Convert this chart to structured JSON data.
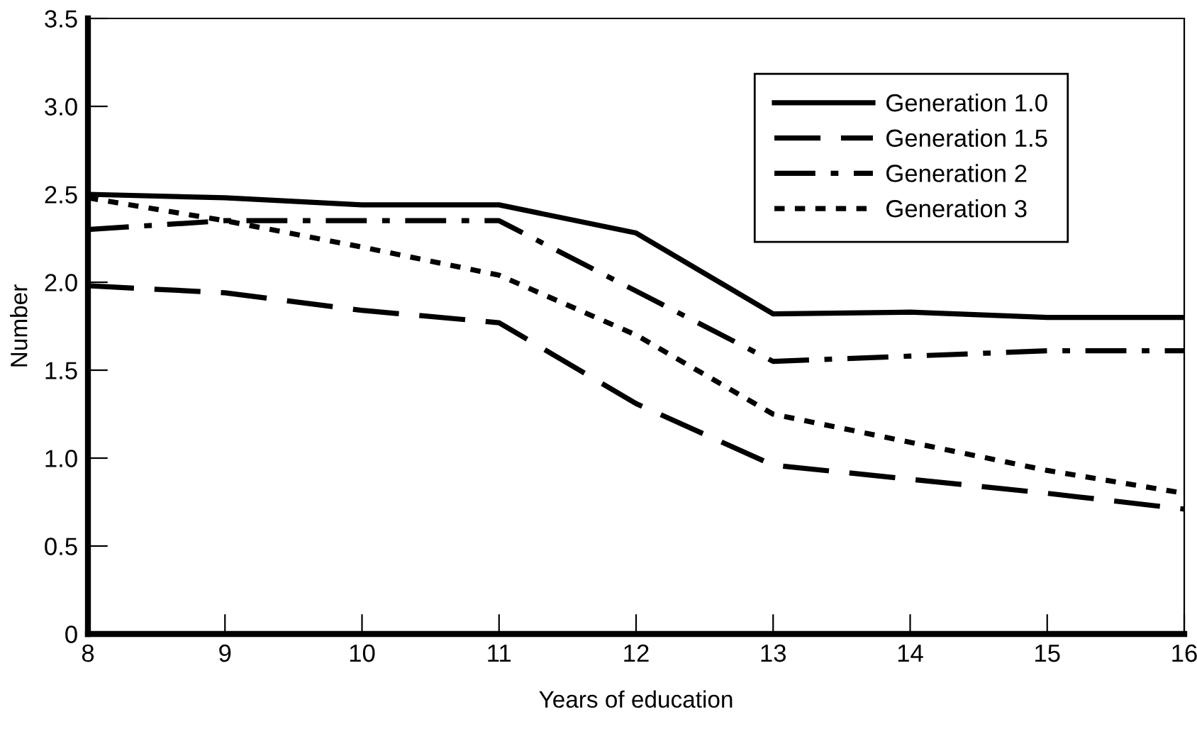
{
  "chart_data": {
    "type": "line",
    "xlabel": "Years of education",
    "ylabel": "Number",
    "x": [
      8,
      9,
      10,
      11,
      12,
      13,
      14,
      15,
      16
    ],
    "series": [
      {
        "name": "Generation 1.0",
        "color": "#000000",
        "line_style": "solid",
        "values": [
          2.5,
          2.48,
          2.44,
          2.44,
          2.28,
          1.82,
          1.83,
          1.8,
          1.8
        ]
      },
      {
        "name": "Generation 1.5",
        "color": "#000000",
        "line_style": "dashed",
        "values": [
          1.98,
          1.94,
          1.84,
          1.77,
          1.31,
          0.96,
          0.88,
          0.8,
          0.71
        ]
      },
      {
        "name": "Generation 2",
        "color": "#000000",
        "line_style": "dashdot",
        "values": [
          2.3,
          2.35,
          2.35,
          2.35,
          1.95,
          1.55,
          1.58,
          1.61,
          1.61
        ]
      },
      {
        "name": "Generation 3",
        "color": "#000000",
        "line_style": "dotted",
        "values": [
          2.48,
          2.35,
          2.2,
          2.04,
          1.7,
          1.25,
          1.09,
          0.93,
          0.8
        ]
      }
    ],
    "xlim": [
      8,
      16
    ],
    "xticks": [
      8,
      9,
      10,
      11,
      12,
      13,
      14,
      15,
      16
    ],
    "ylim": [
      0,
      3.5
    ],
    "yticks": [
      0,
      0.5,
      {
        "value": 1,
        "label": "1.0"
      },
      1.5,
      {
        "value": 2,
        "label": "2.0"
      },
      2.5,
      {
        "value": 3,
        "label": "3.0"
      },
      3.5
    ],
    "grid": false,
    "legend": "top right",
    "marker": "none"
  }
}
